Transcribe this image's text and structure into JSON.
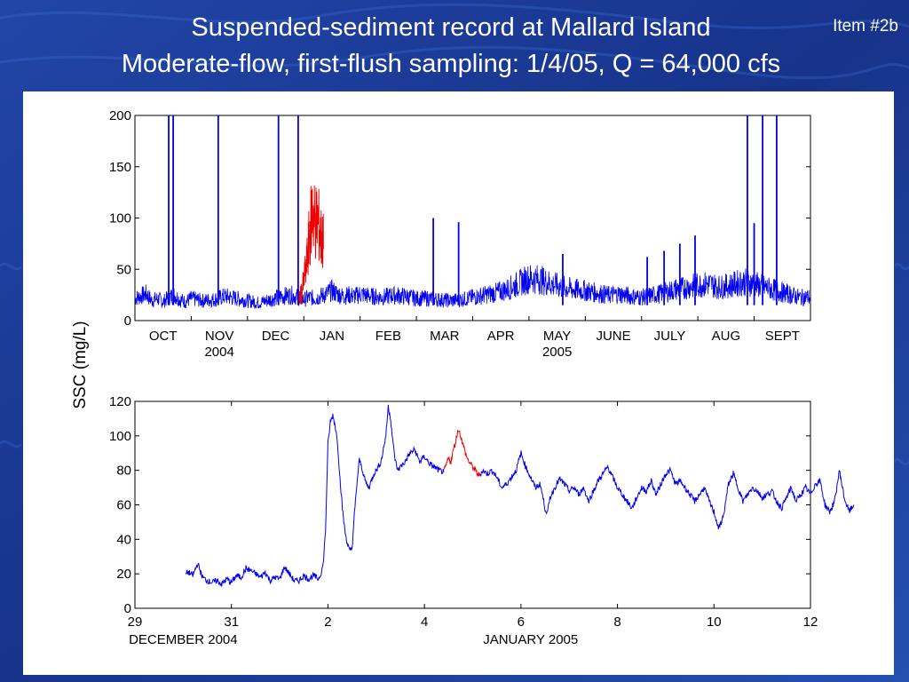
{
  "slide": {
    "title_line1": "Suspended-sediment record at Mallard Island",
    "title_line2": "Moderate-flow, first-flush sampling: 1/4/05, Q = 64,000 cfs",
    "item_label": "Item #2b",
    "colors": {
      "background": "#1b3a8c",
      "panel": "#ffffff",
      "series": "#0000ee",
      "highlight": "#ee0000"
    }
  },
  "shared_ylabel": "SSC (mg/L)",
  "chart_data": [
    {
      "type": "line",
      "name": "annual-record",
      "ylim": [
        0,
        200
      ],
      "yticks": [
        0,
        50,
        100,
        150,
        200
      ],
      "xlim": [
        0,
        12
      ],
      "month_ticks": [
        "OCT",
        "NOV",
        "DEC",
        "JAN",
        "FEB",
        "MAR",
        "APR",
        "MAY",
        "JUNE",
        "JULY",
        "AUG",
        "SEPT"
      ],
      "year_labels": [
        {
          "text": "2004",
          "under": "NOV"
        },
        {
          "text": "2005",
          "under": "MAY"
        }
      ],
      "grid": false,
      "series_blue": [
        [
          0.0,
          20
        ],
        [
          0.1,
          22
        ],
        [
          0.2,
          24
        ],
        [
          0.3,
          18
        ],
        [
          0.4,
          20
        ],
        [
          0.5,
          17
        ],
        [
          0.6,
          21
        ],
        [
          0.7,
          23
        ],
        [
          0.8,
          19
        ],
        [
          0.9,
          17
        ],
        [
          1.0,
          20
        ],
        [
          1.2,
          18
        ],
        [
          1.4,
          19
        ],
        [
          1.6,
          22
        ],
        [
          1.8,
          20
        ],
        [
          2.0,
          18
        ],
        [
          2.2,
          16
        ],
        [
          2.4,
          19
        ],
        [
          2.6,
          22
        ],
        [
          2.8,
          23
        ],
        [
          3.0,
          19
        ],
        [
          3.1,
          21
        ],
        [
          3.2,
          20
        ],
        [
          3.3,
          22
        ],
        [
          3.4,
          24
        ],
        [
          3.5,
          27
        ],
        [
          3.6,
          24
        ],
        [
          3.7,
          22
        ],
        [
          3.8,
          23
        ],
        [
          3.9,
          22
        ],
        [
          4.0,
          24
        ],
        [
          4.2,
          22
        ],
        [
          4.4,
          21
        ],
        [
          4.6,
          23
        ],
        [
          4.8,
          22
        ],
        [
          5.0,
          20
        ],
        [
          5.2,
          20
        ],
        [
          5.4,
          19
        ],
        [
          5.6,
          18
        ],
        [
          5.8,
          19
        ],
        [
          6.0,
          21
        ],
        [
          6.2,
          23
        ],
        [
          6.4,
          25
        ],
        [
          6.6,
          28
        ],
        [
          6.8,
          33
        ],
        [
          7.0,
          38
        ],
        [
          7.2,
          37
        ],
        [
          7.4,
          33
        ],
        [
          7.6,
          30
        ],
        [
          7.8,
          28
        ],
        [
          8.0,
          27
        ],
        [
          8.2,
          25
        ],
        [
          8.4,
          23
        ],
        [
          8.6,
          24
        ],
        [
          8.8,
          22
        ],
        [
          9.0,
          21
        ],
        [
          9.2,
          23
        ],
        [
          9.4,
          25
        ],
        [
          9.6,
          28
        ],
        [
          9.8,
          30
        ],
        [
          10.0,
          32
        ],
        [
          10.2,
          33
        ],
        [
          10.4,
          30
        ],
        [
          10.6,
          32
        ],
        [
          10.8,
          35
        ],
        [
          11.0,
          33
        ],
        [
          11.2,
          30
        ],
        [
          11.4,
          27
        ],
        [
          11.6,
          24
        ],
        [
          11.8,
          21
        ],
        [
          12.0,
          21
        ]
      ],
      "series_red": [
        [
          2.9,
          19
        ],
        [
          2.95,
          23
        ],
        [
          3.0,
          35
        ],
        [
          3.05,
          50
        ],
        [
          3.1,
          75
        ],
        [
          3.15,
          100
        ],
        [
          3.2,
          88
        ],
        [
          3.25,
          90
        ],
        [
          3.3,
          74
        ],
        [
          3.35,
          70
        ]
      ],
      "spikes": [
        [
          0.6,
          200
        ],
        [
          0.68,
          200
        ],
        [
          1.48,
          200
        ],
        [
          2.55,
          200
        ],
        [
          2.9,
          200
        ],
        [
          10.88,
          200
        ],
        [
          11.15,
          200
        ],
        [
          11.4,
          200
        ],
        [
          5.3,
          100
        ],
        [
          5.75,
          96
        ],
        [
          11.0,
          95
        ],
        [
          9.95,
          83
        ],
        [
          9.68,
          75
        ],
        [
          9.4,
          68
        ],
        [
          9.1,
          62
        ],
        [
          7.6,
          65
        ]
      ],
      "highlight_period": "first-flush sampling (red)"
    },
    {
      "type": "line",
      "name": "first-flush-detail",
      "ylim": [
        0,
        120
      ],
      "yticks": [
        0,
        20,
        40,
        60,
        80,
        100,
        120
      ],
      "xlim": [
        29,
        12
      ],
      "xtick_labels": [
        "29",
        "31",
        "2",
        "4",
        "6",
        "8",
        "10",
        "12"
      ],
      "xtick_positions": [
        0,
        2,
        4,
        6,
        8,
        10,
        12,
        14
      ],
      "date_labels": [
        {
          "text": "DECEMBER 2004",
          "at": 1.0
        },
        {
          "text": "JANUARY 2005",
          "at": 8.2
        }
      ],
      "grid": false,
      "series_blue_a": [
        [
          1.05,
          20
        ],
        [
          1.1,
          21
        ],
        [
          1.2,
          19
        ],
        [
          1.3,
          26
        ],
        [
          1.4,
          18
        ],
        [
          1.5,
          16
        ],
        [
          1.6,
          15
        ],
        [
          1.7,
          16
        ],
        [
          1.8,
          14
        ],
        [
          1.9,
          17
        ],
        [
          2.0,
          15
        ],
        [
          2.1,
          19
        ],
        [
          2.2,
          18
        ],
        [
          2.3,
          23
        ],
        [
          2.4,
          22
        ],
        [
          2.5,
          20
        ],
        [
          2.6,
          18
        ],
        [
          2.7,
          21
        ],
        [
          2.8,
          16
        ],
        [
          2.9,
          18
        ],
        [
          3.0,
          17
        ],
        [
          3.1,
          24
        ],
        [
          3.2,
          20
        ],
        [
          3.3,
          16
        ],
        [
          3.4,
          16
        ],
        [
          3.5,
          19
        ],
        [
          3.6,
          17
        ],
        [
          3.7,
          19
        ],
        [
          3.8,
          17
        ],
        [
          3.85,
          20
        ],
        [
          3.9,
          25
        ],
        [
          3.95,
          45
        ],
        [
          4.0,
          95
        ],
        [
          4.05,
          108
        ],
        [
          4.1,
          112
        ],
        [
          4.15,
          106
        ],
        [
          4.2,
          96
        ],
        [
          4.25,
          75
        ],
        [
          4.3,
          58
        ],
        [
          4.35,
          45
        ],
        [
          4.4,
          38
        ],
        [
          4.45,
          33
        ],
        [
          4.5,
          35
        ],
        [
          4.55,
          55
        ],
        [
          4.6,
          72
        ],
        [
          4.65,
          86
        ],
        [
          4.7,
          82
        ],
        [
          4.75,
          76
        ],
        [
          4.8,
          72
        ],
        [
          4.85,
          70
        ],
        [
          4.9,
          74
        ],
        [
          4.95,
          78
        ],
        [
          5.0,
          80
        ],
        [
          5.1,
          85
        ],
        [
          5.2,
          100
        ],
        [
          5.25,
          117
        ],
        [
          5.3,
          110
        ],
        [
          5.35,
          95
        ],
        [
          5.4,
          85
        ],
        [
          5.45,
          80
        ],
        [
          5.5,
          82
        ],
        [
          5.6,
          85
        ],
        [
          5.7,
          90
        ],
        [
          5.8,
          92
        ],
        [
          5.9,
          85
        ],
        [
          6.0,
          88
        ],
        [
          6.1,
          84
        ],
        [
          6.2,
          82
        ],
        [
          6.3,
          80
        ],
        [
          6.4,
          79
        ]
      ],
      "series_red": [
        [
          6.4,
          79
        ],
        [
          6.45,
          83
        ],
        [
          6.5,
          87
        ],
        [
          6.55,
          85
        ],
        [
          6.6,
          92
        ],
        [
          6.65,
          97
        ],
        [
          6.7,
          104
        ],
        [
          6.75,
          100
        ],
        [
          6.8,
          95
        ],
        [
          6.85,
          90
        ],
        [
          6.9,
          86
        ],
        [
          6.95,
          84
        ],
        [
          7.0,
          82
        ],
        [
          7.05,
          80
        ],
        [
          7.1,
          78
        ],
        [
          7.15,
          77
        ]
      ],
      "series_blue_b": [
        [
          7.15,
          77
        ],
        [
          7.2,
          80
        ],
        [
          7.3,
          78
        ],
        [
          7.4,
          80
        ],
        [
          7.5,
          76
        ],
        [
          7.6,
          70
        ],
        [
          7.7,
          72
        ],
        [
          7.8,
          76
        ],
        [
          7.9,
          80
        ],
        [
          8.0,
          90
        ],
        [
          8.1,
          82
        ],
        [
          8.2,
          76
        ],
        [
          8.3,
          70
        ],
        [
          8.4,
          72
        ],
        [
          8.5,
          58
        ],
        [
          8.55,
          55
        ],
        [
          8.6,
          64
        ],
        [
          8.7,
          70
        ],
        [
          8.8,
          75
        ],
        [
          8.9,
          72
        ],
        [
          9.0,
          68
        ],
        [
          9.1,
          70
        ],
        [
          9.2,
          66
        ],
        [
          9.3,
          70
        ],
        [
          9.4,
          62
        ],
        [
          9.5,
          68
        ],
        [
          9.6,
          74
        ],
        [
          9.7,
          78
        ],
        [
          9.8,
          82
        ],
        [
          9.9,
          76
        ],
        [
          10.0,
          70
        ],
        [
          10.1,
          66
        ],
        [
          10.2,
          62
        ],
        [
          10.3,
          58
        ],
        [
          10.4,
          64
        ],
        [
          10.5,
          70
        ],
        [
          10.6,
          68
        ],
        [
          10.7,
          74
        ],
        [
          10.8,
          66
        ],
        [
          10.9,
          72
        ],
        [
          11.0,
          78
        ],
        [
          11.1,
          80
        ],
        [
          11.2,
          72
        ],
        [
          11.3,
          74
        ],
        [
          11.4,
          70
        ],
        [
          11.5,
          66
        ],
        [
          11.6,
          62
        ],
        [
          11.7,
          66
        ],
        [
          11.8,
          70
        ],
        [
          11.9,
          62
        ],
        [
          12.0,
          56
        ],
        [
          12.1,
          46
        ],
        [
          12.2,
          54
        ],
        [
          12.3,
          72
        ],
        [
          12.4,
          78
        ],
        [
          12.5,
          70
        ],
        [
          12.6,
          62
        ],
        [
          12.7,
          66
        ],
        [
          12.8,
          70
        ],
        [
          12.9,
          68
        ],
        [
          13.0,
          64
        ],
        [
          13.1,
          66
        ],
        [
          13.2,
          68
        ],
        [
          13.3,
          62
        ],
        [
          13.4,
          58
        ],
        [
          13.5,
          64
        ],
        [
          13.6,
          70
        ],
        [
          13.7,
          62
        ],
        [
          13.8,
          66
        ],
        [
          13.9,
          70
        ],
        [
          14.0,
          66
        ],
        [
          14.1,
          72
        ],
        [
          14.2,
          74
        ],
        [
          14.3,
          60
        ],
        [
          14.4,
          56
        ],
        [
          14.5,
          62
        ],
        [
          14.6,
          80
        ],
        [
          14.7,
          64
        ],
        [
          14.8,
          56
        ],
        [
          14.9,
          60
        ]
      ]
    }
  ]
}
